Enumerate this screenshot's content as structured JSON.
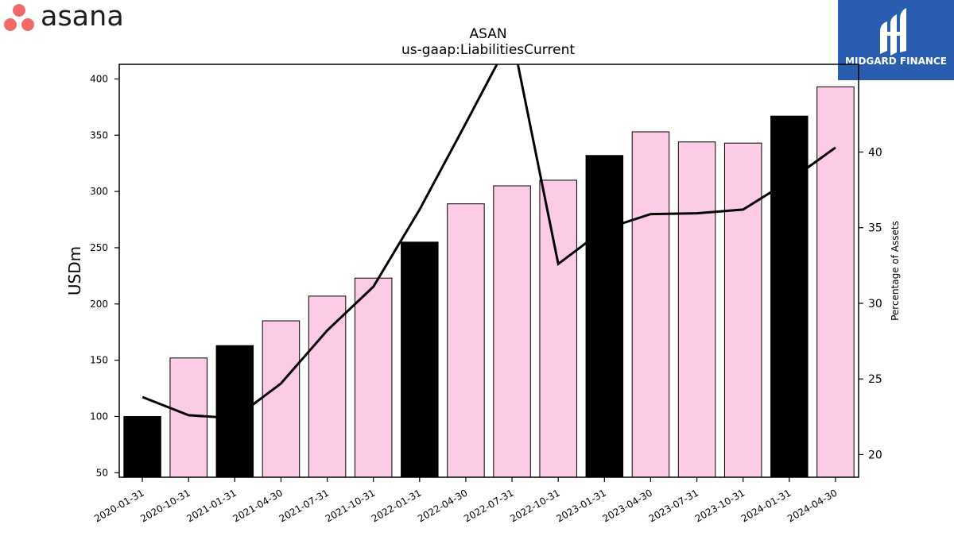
{
  "logos": {
    "left_brand": "asana",
    "left_brand_color": "#f06a6a",
    "right_brand": "MIDGARD FINANCE",
    "right_brand_bg": "#2a5db0"
  },
  "chart_data": {
    "type": "bar",
    "title": "ASAN",
    "subtitle": "us-gaap:LiabilitiesCurrent",
    "ylabel": "USDm",
    "y2label": "Percentage of Assets",
    "categories": [
      "2020-01-31",
      "2020-10-31",
      "2021-01-31",
      "2021-04-30",
      "2021-07-31",
      "2021-10-31",
      "2022-01-31",
      "2022-04-30",
      "2022-07-31",
      "2022-10-31",
      "2023-01-31",
      "2023-04-30",
      "2023-07-31",
      "2023-10-31",
      "2024-01-31",
      "2024-04-30"
    ],
    "series": [
      {
        "axis": "left",
        "type": "bar",
        "values": [
          100,
          152,
          163,
          185,
          207,
          223,
          255,
          289,
          305,
          310,
          332,
          353,
          344,
          343,
          367,
          393
        ],
        "fiscal_year_end": [
          true,
          false,
          true,
          false,
          false,
          false,
          true,
          false,
          false,
          false,
          true,
          false,
          false,
          false,
          true,
          false
        ],
        "color_fiscal_year_end": "#000000",
        "color_quarter": "#fccbe6"
      },
      {
        "axis": "right",
        "type": "line",
        "values": [
          23.8,
          22.6,
          22.4,
          24.7,
          28.2,
          31.1,
          36.2,
          41.9,
          47.7,
          32.6,
          34.9,
          35.9,
          35.95,
          36.2,
          38.1,
          40.3
        ],
        "color": "#000000"
      }
    ],
    "ylim": [
      46,
      413
    ],
    "y_ticks": [
      50,
      100,
      150,
      200,
      250,
      300,
      350,
      400
    ],
    "y2lim": [
      18.5,
      45.8
    ],
    "y2_ticks": [
      20,
      25,
      30,
      35,
      40
    ],
    "grid": false
  }
}
